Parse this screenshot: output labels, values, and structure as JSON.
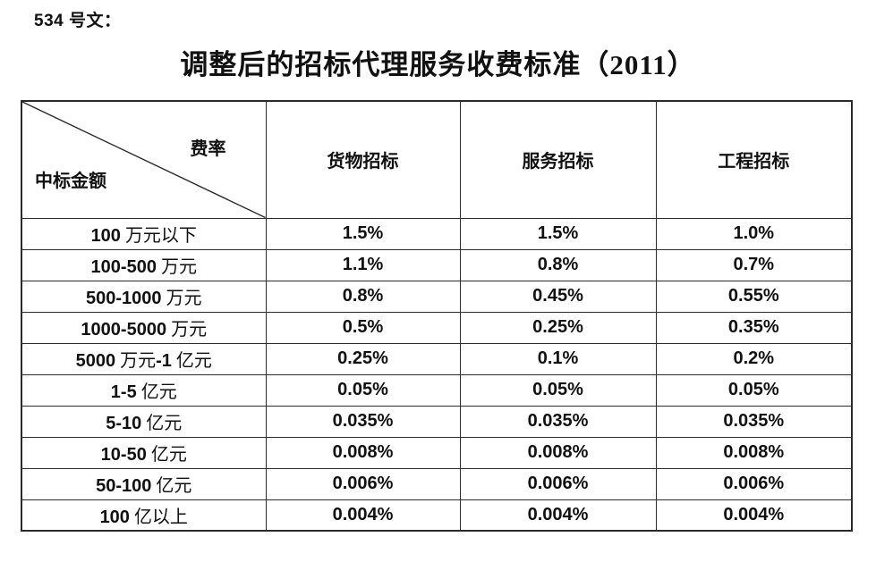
{
  "doc": {
    "ref_label": "534 号文：",
    "title": "调整后的招标代理服务收费标准（2011）"
  },
  "table": {
    "corner": {
      "top_right": "费率",
      "bottom_left": "中标金额"
    },
    "columns": [
      "货物招标",
      "服务招标",
      "工程招标"
    ],
    "rows": [
      {
        "label": "100 万元以下",
        "goods": "1.5%",
        "service": "1.5%",
        "works": "1.0%"
      },
      {
        "label": "100-500 万元",
        "goods": "1.1%",
        "service": "0.8%",
        "works": "0.7%"
      },
      {
        "label": "500-1000 万元",
        "goods": "0.8%",
        "service": "0.45%",
        "works": "0.55%"
      },
      {
        "label": "1000-5000 万元",
        "goods": "0.5%",
        "service": "0.25%",
        "works": "0.35%"
      },
      {
        "label": "5000 万元-1 亿元",
        "goods": "0.25%",
        "service": "0.1%",
        "works": "0.2%"
      },
      {
        "label": "1-5 亿元",
        "goods": "0.05%",
        "service": "0.05%",
        "works": "0.05%"
      },
      {
        "label": "5-10 亿元",
        "goods": "0.035%",
        "service": "0.035%",
        "works": "0.035%"
      },
      {
        "label": "10-50 亿元",
        "goods": "0.008%",
        "service": "0.008%",
        "works": "0.008%"
      },
      {
        "label": "50-100 亿元",
        "goods": "0.006%",
        "service": "0.006%",
        "works": "0.006%"
      },
      {
        "label": "100 亿以上",
        "goods": "0.004%",
        "service": "0.004%",
        "works": "0.004%"
      }
    ]
  },
  "colors": {
    "text": "#111111",
    "border": "#2b2b2b",
    "background": "#ffffff"
  }
}
